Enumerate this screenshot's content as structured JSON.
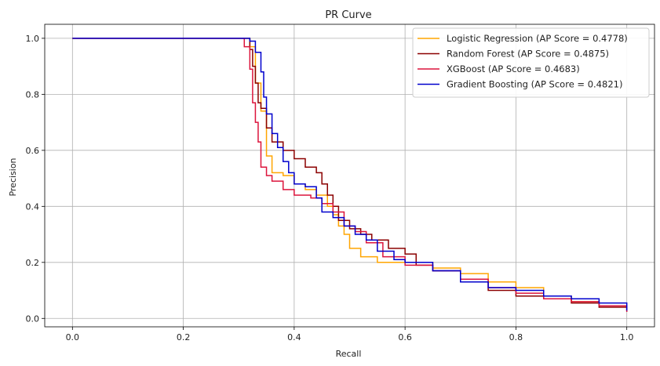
{
  "chart_data": {
    "type": "line",
    "title": "PR Curve",
    "xlabel": "Recall",
    "ylabel": "Precision",
    "xlim": [
      -0.05,
      1.05
    ],
    "ylim": [
      -0.03,
      1.05
    ],
    "xticks": [
      0.0,
      0.2,
      0.4,
      0.6,
      0.8,
      1.0
    ],
    "xtick_labels": [
      "0.0",
      "0.2",
      "0.4",
      "0.6",
      "0.8",
      "1.0"
    ],
    "yticks": [
      0.0,
      0.2,
      0.4,
      0.6,
      0.8,
      1.0
    ],
    "ytick_labels": [
      "0.0",
      "0.2",
      "0.4",
      "0.6",
      "0.8",
      "1.0"
    ],
    "grid": true,
    "legend_position": "top-right",
    "series": [
      {
        "name": "Logistic Regression (AP Score = 0.4778)",
        "color": "#FFA500",
        "points": [
          [
            0.0,
            1.0
          ],
          [
            0.32,
            1.0
          ],
          [
            0.32,
            0.97
          ],
          [
            0.33,
            0.93
          ],
          [
            0.33,
            0.84
          ],
          [
            0.34,
            0.8
          ],
          [
            0.34,
            0.74
          ],
          [
            0.35,
            0.66
          ],
          [
            0.35,
            0.58
          ],
          [
            0.36,
            0.55
          ],
          [
            0.36,
            0.52
          ],
          [
            0.38,
            0.51
          ],
          [
            0.4,
            0.48
          ],
          [
            0.42,
            0.46
          ],
          [
            0.44,
            0.44
          ],
          [
            0.46,
            0.4
          ],
          [
            0.47,
            0.37
          ],
          [
            0.48,
            0.33
          ],
          [
            0.49,
            0.3
          ],
          [
            0.5,
            0.25
          ],
          [
            0.52,
            0.22
          ],
          [
            0.55,
            0.2
          ],
          [
            0.6,
            0.2
          ],
          [
            0.65,
            0.18
          ],
          [
            0.7,
            0.16
          ],
          [
            0.75,
            0.13
          ],
          [
            0.8,
            0.11
          ],
          [
            0.85,
            0.08
          ],
          [
            0.9,
            0.06
          ],
          [
            0.95,
            0.045
          ],
          [
            1.0,
            0.027
          ]
        ]
      },
      {
        "name": "Random Forest (AP Score = 0.4875)",
        "color": "#8B0000",
        "points": [
          [
            0.0,
            1.0
          ],
          [
            0.32,
            1.0
          ],
          [
            0.32,
            0.96
          ],
          [
            0.325,
            0.9
          ],
          [
            0.33,
            0.84
          ],
          [
            0.335,
            0.77
          ],
          [
            0.34,
            0.75
          ],
          [
            0.35,
            0.68
          ],
          [
            0.36,
            0.63
          ],
          [
            0.38,
            0.6
          ],
          [
            0.4,
            0.57
          ],
          [
            0.42,
            0.54
          ],
          [
            0.44,
            0.52
          ],
          [
            0.45,
            0.48
          ],
          [
            0.46,
            0.44
          ],
          [
            0.47,
            0.4
          ],
          [
            0.48,
            0.35
          ],
          [
            0.5,
            0.32
          ],
          [
            0.52,
            0.3
          ],
          [
            0.54,
            0.28
          ],
          [
            0.57,
            0.25
          ],
          [
            0.6,
            0.23
          ],
          [
            0.62,
            0.19
          ],
          [
            0.65,
            0.17
          ],
          [
            0.7,
            0.13
          ],
          [
            0.75,
            0.1
          ],
          [
            0.8,
            0.08
          ],
          [
            0.85,
            0.07
          ],
          [
            0.9,
            0.055
          ],
          [
            0.95,
            0.04
          ],
          [
            1.0,
            0.025
          ]
        ]
      },
      {
        "name": "XGBoost (AP Score = 0.4683)",
        "color": "#DC143C",
        "points": [
          [
            0.0,
            1.0
          ],
          [
            0.31,
            1.0
          ],
          [
            0.31,
            0.97
          ],
          [
            0.32,
            0.89
          ],
          [
            0.325,
            0.77
          ],
          [
            0.33,
            0.7
          ],
          [
            0.335,
            0.63
          ],
          [
            0.34,
            0.54
          ],
          [
            0.35,
            0.51
          ],
          [
            0.36,
            0.49
          ],
          [
            0.38,
            0.46
          ],
          [
            0.4,
            0.44
          ],
          [
            0.43,
            0.43
          ],
          [
            0.45,
            0.41
          ],
          [
            0.47,
            0.38
          ],
          [
            0.49,
            0.33
          ],
          [
            0.51,
            0.31
          ],
          [
            0.53,
            0.27
          ],
          [
            0.56,
            0.22
          ],
          [
            0.6,
            0.19
          ],
          [
            0.65,
            0.17
          ],
          [
            0.7,
            0.14
          ],
          [
            0.75,
            0.11
          ],
          [
            0.8,
            0.09
          ],
          [
            0.85,
            0.07
          ],
          [
            0.9,
            0.06
          ],
          [
            0.95,
            0.045
          ],
          [
            1.0,
            0.023
          ]
        ]
      },
      {
        "name": "Gradient Boosting (AP Score = 0.4821)",
        "color": "#0000CD",
        "points": [
          [
            0.0,
            1.0
          ],
          [
            0.32,
            1.0
          ],
          [
            0.32,
            0.99
          ],
          [
            0.33,
            0.95
          ],
          [
            0.34,
            0.88
          ],
          [
            0.345,
            0.79
          ],
          [
            0.35,
            0.73
          ],
          [
            0.36,
            0.66
          ],
          [
            0.37,
            0.61
          ],
          [
            0.38,
            0.56
          ],
          [
            0.39,
            0.52
          ],
          [
            0.4,
            0.48
          ],
          [
            0.42,
            0.47
          ],
          [
            0.44,
            0.43
          ],
          [
            0.45,
            0.38
          ],
          [
            0.47,
            0.36
          ],
          [
            0.49,
            0.33
          ],
          [
            0.51,
            0.3
          ],
          [
            0.53,
            0.28
          ],
          [
            0.55,
            0.24
          ],
          [
            0.58,
            0.21
          ],
          [
            0.6,
            0.2
          ],
          [
            0.65,
            0.17
          ],
          [
            0.7,
            0.13
          ],
          [
            0.75,
            0.11
          ],
          [
            0.8,
            0.1
          ],
          [
            0.85,
            0.08
          ],
          [
            0.9,
            0.07
          ],
          [
            0.95,
            0.055
          ],
          [
            1.0,
            0.028
          ]
        ]
      }
    ]
  }
}
